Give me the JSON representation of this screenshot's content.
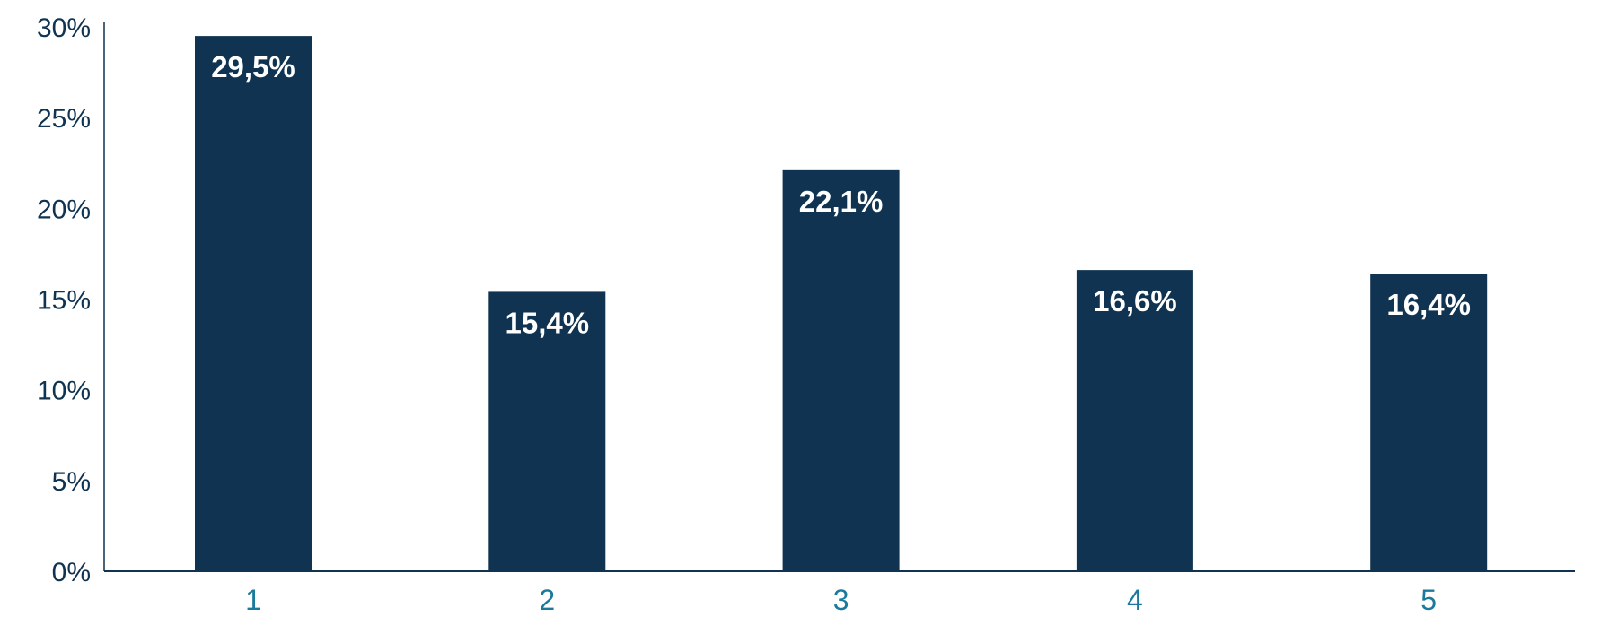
{
  "chart_data": {
    "type": "bar",
    "title": "",
    "xlabel": "",
    "ylabel": "",
    "categories": [
      "1",
      "2",
      "3",
      "4",
      "5"
    ],
    "values": [
      29.5,
      15.4,
      22.1,
      16.6,
      16.4
    ],
    "data_labels": [
      "29,5%",
      "15,4%",
      "22,1%",
      "16,6%",
      "16,4%"
    ],
    "ylim": [
      0,
      30
    ],
    "yticks": [
      0,
      5,
      10,
      15,
      20,
      25,
      30
    ],
    "ytick_labels": [
      "0%",
      "5%",
      "10%",
      "15%",
      "20%",
      "25%",
      "30%"
    ],
    "grid": false,
    "legend": "none"
  },
  "colors": {
    "bar": "#0f3350",
    "axis": "#0f3350",
    "y_tick_text": "#0f3350",
    "x_tick_text": "#1a7a9c",
    "bar_label_text": "#ffffff"
  }
}
